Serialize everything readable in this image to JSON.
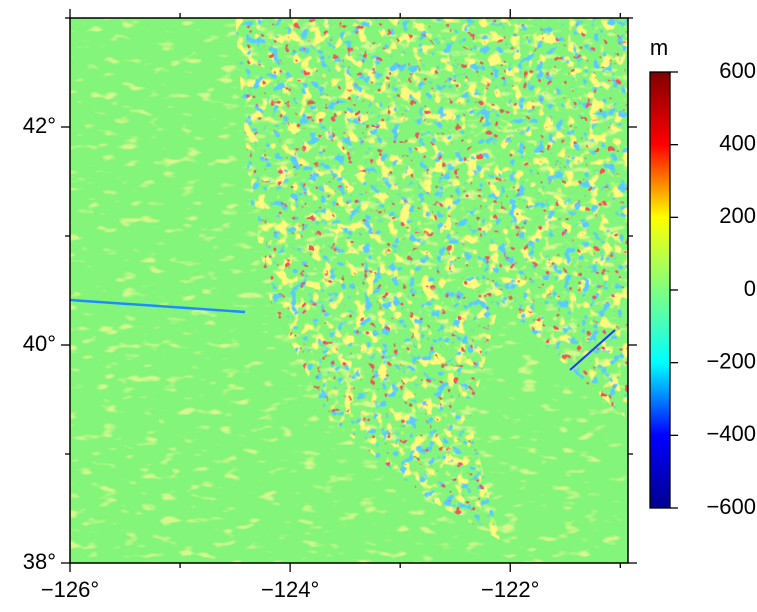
{
  "chart_data": {
    "type": "map",
    "colorbar_label": "m",
    "xlim": [
      -126,
      -120.93
    ],
    "ylim": [
      38,
      43
    ],
    "xticks": [
      {
        "value": -126,
        "label": "−126°"
      },
      {
        "value": -124,
        "label": "−124°"
      },
      {
        "value": -122,
        "label": "−122°"
      }
    ],
    "yticks": [
      {
        "value": 38,
        "label": "38°"
      },
      {
        "value": 40,
        "label": "40°"
      },
      {
        "value": 42,
        "label": "42°"
      }
    ],
    "xminor": [
      -125,
      -123,
      -121
    ],
    "yminor": [
      39,
      41,
      43
    ],
    "clim": [
      -600,
      600
    ],
    "cticks": [
      {
        "value": -600,
        "label": "−600"
      },
      {
        "value": -400,
        "label": "−400"
      },
      {
        "value": -200,
        "label": "−200"
      },
      0,
      200,
      400,
      600
    ],
    "colormap": [
      "#00008f",
      "#0000ff",
      "#00ffff",
      "#80ff80",
      "#ffff00",
      "#ff0000",
      "#800000"
    ]
  }
}
